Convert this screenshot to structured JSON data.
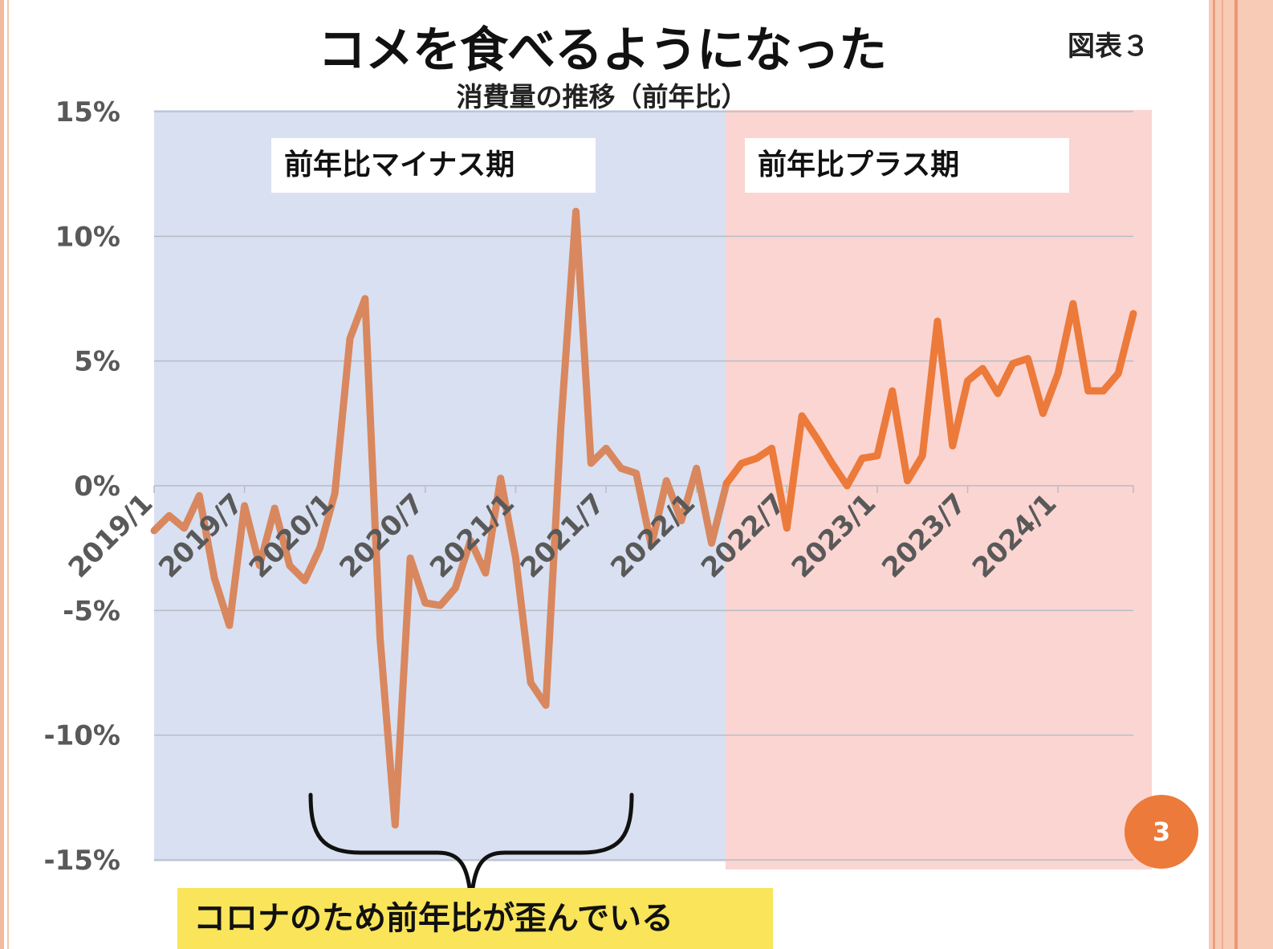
{
  "header": {
    "title": "コメを食べるようになった",
    "subtitle": "消費量の推移（前年比）",
    "figure_label": "図表３"
  },
  "periods": {
    "minus_label": "前年比マイナス期",
    "plus_label": "前年比プラス期"
  },
  "note": "コロナのため前年比が歪んでいる",
  "page_number": "3",
  "colors": {
    "minus_band": "#d9e0f1",
    "plus_band": "#fbd5d2",
    "line_minus_period": "#d9875e",
    "line_plus_period": "#ec7a3a",
    "gridline": "#b8bcc6",
    "tick_label": "#595959",
    "note_bg": "#f9e45a",
    "badge": "#ec7a3a"
  },
  "chart_data": {
    "type": "line",
    "title": "消費量の推移（前年比）",
    "ylim": [
      -15,
      15
    ],
    "yticks": [
      "15%",
      "10%",
      "5%",
      "0%",
      "-5%",
      "-10%",
      "-15%"
    ],
    "ytick_values": [
      15,
      10,
      5,
      0,
      -5,
      -10,
      -15
    ],
    "xtick_labels": [
      "2019/1",
      "2019/7",
      "2020/1",
      "2020/7",
      "2021/1",
      "2021/7",
      "2022/1",
      "2022/7",
      "2023/1",
      "2023/7",
      "2024/1"
    ],
    "xtick_index": [
      0,
      6,
      12,
      18,
      24,
      30,
      36,
      42,
      48,
      54,
      60
    ],
    "grid": true,
    "series": [
      {
        "start": "2019/1",
        "values": [
          -1.8,
          -1.2,
          -1.7,
          -0.4,
          -3.7,
          -5.6,
          -0.8,
          -3.2,
          -0.9,
          -3.2,
          -3.8,
          -2.5,
          -0.3,
          5.9,
          7.5,
          -6.1,
          -13.6,
          -2.9,
          -4.7,
          -4.8,
          -4.1,
          -2.2,
          -3.5,
          0.3,
          -2.9,
          -7.9,
          -8.8,
          2.4,
          11.0,
          0.9,
          1.5,
          0.7,
          0.5,
          -2.4,
          0.2,
          -1.4,
          0.7,
          -2.3,
          0.1,
          0.9,
          1.1,
          1.5,
          -1.7,
          2.8,
          1.9,
          0.9,
          0.0,
          1.1,
          1.2,
          3.8,
          0.2,
          1.2,
          6.6,
          1.6,
          4.2,
          4.7,
          3.7,
          4.9,
          5.1,
          2.9,
          4.5,
          7.3,
          3.8,
          3.8,
          4.5,
          6.9
        ]
      }
    ]
  }
}
